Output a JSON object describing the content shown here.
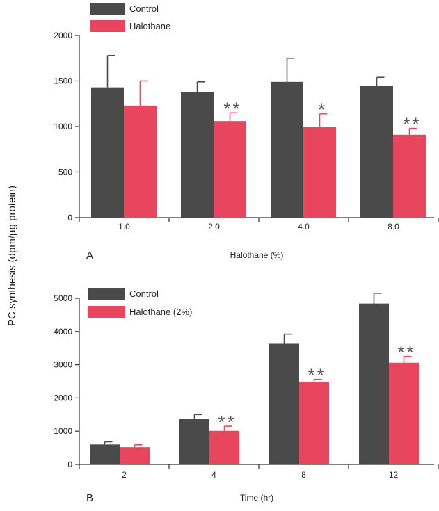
{
  "ylabel": "PC synthesis (dpm/µg protein)",
  "colors": {
    "control": "#4a4a4a",
    "treatment": "#e8455e",
    "axis": "#333333"
  },
  "chart_data": [
    {
      "type": "bar",
      "panel_label": "A",
      "xlabel": "Halothane (%)",
      "categories": [
        "1.0",
        "2.0",
        "4.0",
        "8.0"
      ],
      "ylim": [
        0,
        2000
      ],
      "yticks": [
        0,
        500,
        1000,
        1500,
        2000
      ],
      "legend_position": "top-left",
      "series": [
        {
          "name": "Control",
          "values": [
            1430,
            1380,
            1490,
            1450
          ],
          "errors": [
            350,
            110,
            260,
            90
          ]
        },
        {
          "name": "Halothane",
          "values": [
            1230,
            1060,
            1000,
            910
          ],
          "errors": [
            270,
            90,
            140,
            70
          ]
        }
      ],
      "annotations": [
        {
          "category": "2.0",
          "series": "Halothane",
          "text": "**"
        },
        {
          "category": "4.0",
          "series": "Halothane",
          "text": "*"
        },
        {
          "category": "8.0",
          "series": "Halothane",
          "text": "**"
        }
      ]
    },
    {
      "type": "bar",
      "panel_label": "B",
      "xlabel": "Time (hr)",
      "categories": [
        "2",
        "4",
        "8",
        "12"
      ],
      "ylim": [
        0,
        5000
      ],
      "yticks": [
        0,
        1000,
        2000,
        3000,
        4000,
        5000
      ],
      "legend_position": "top-left",
      "series": [
        {
          "name": "Control",
          "values": [
            600,
            1370,
            3630,
            4840
          ],
          "errors": [
            80,
            130,
            290,
            310
          ]
        },
        {
          "name": "Halothane (2%)",
          "values": [
            520,
            1010,
            2480,
            3060
          ],
          "errors": [
            70,
            140,
            80,
            190
          ]
        }
      ],
      "annotations": [
        {
          "category": "4",
          "series": "Halothane (2%)",
          "text": "**"
        },
        {
          "category": "8",
          "series": "Halothane (2%)",
          "text": "**"
        },
        {
          "category": "12",
          "series": "Halothane (2%)",
          "text": "**"
        }
      ]
    }
  ]
}
